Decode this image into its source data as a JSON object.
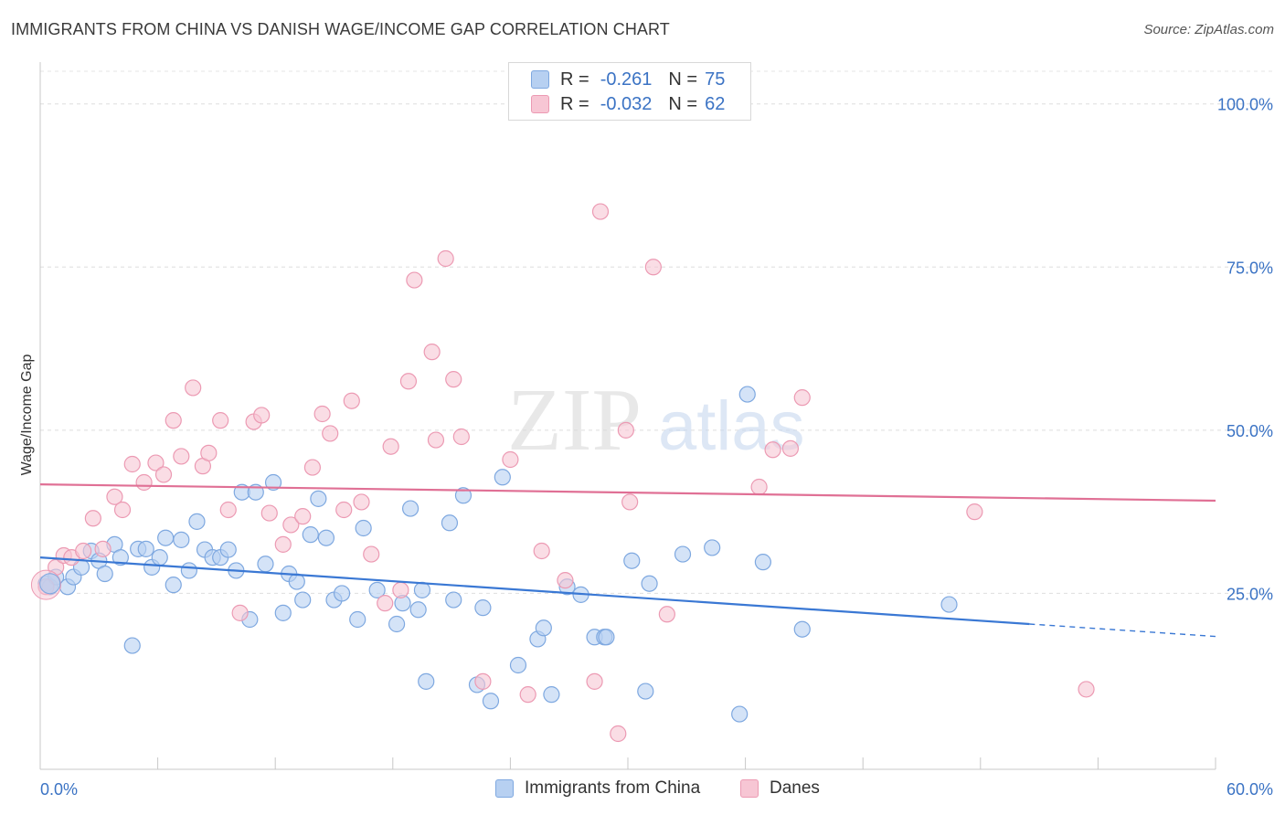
{
  "header": {
    "title": "IMMIGRANTS FROM CHINA VS DANISH WAGE/INCOME GAP CORRELATION CHART",
    "source": "Source: ZipAtlas.com"
  },
  "legend": {
    "rows": [
      {
        "r_label": "R =",
        "r_value": "-0.261",
        "n_label": "N =",
        "n_value": "75",
        "fill": "#b7d0f1",
        "stroke": "#7ea8e0"
      },
      {
        "r_label": "R =",
        "r_value": "-0.032",
        "n_label": "N =",
        "n_value": "62",
        "fill": "#f7c6d4",
        "stroke": "#ec9ab3"
      }
    ]
  },
  "bottom_legend": {
    "items": [
      {
        "label": "Immigrants from China",
        "fill": "#b7d0f1",
        "stroke": "#7ea8e0"
      },
      {
        "label": "Danes",
        "fill": "#f7c6d4",
        "stroke": "#ec9ab3"
      }
    ]
  },
  "watermark": {
    "zip": "ZIP",
    "atlas": "atlas"
  },
  "chart_data": {
    "type": "scatter",
    "title": "IMMIGRANTS FROM CHINA VS DANISH WAGE/INCOME GAP CORRELATION CHART",
    "xlabel": "",
    "ylabel": "Wage/Income Gap",
    "xlim": [
      0,
      60
    ],
    "ylim": [
      0,
      105
    ],
    "x_tick_labels": [
      "0.0%",
      "60.0%"
    ],
    "y_ticks": [
      25,
      50,
      75,
      100
    ],
    "y_tick_labels": [
      "25.0%",
      "50.0%",
      "75.0%",
      "100.0%"
    ],
    "grid": true,
    "legend_position": "top-center",
    "series": [
      {
        "name": "Immigrants from China",
        "color": "#3a78d4",
        "fill": "#b7d0f1",
        "points": [
          [
            0.3,
            26.5
          ],
          [
            0.5,
            26.0
          ],
          [
            0.8,
            27.5
          ],
          [
            1.4,
            26.0
          ],
          [
            1.7,
            27.5
          ],
          [
            2.1,
            29.0
          ],
          [
            2.6,
            31.5
          ],
          [
            3.0,
            30.0
          ],
          [
            3.3,
            28.0
          ],
          [
            3.8,
            32.5
          ],
          [
            4.1,
            30.5
          ],
          [
            4.7,
            17.0
          ],
          [
            5.0,
            31.8
          ],
          [
            5.4,
            31.8
          ],
          [
            5.7,
            29.0
          ],
          [
            6.1,
            30.5
          ],
          [
            6.4,
            33.5
          ],
          [
            6.8,
            26.3
          ],
          [
            7.2,
            33.2
          ],
          [
            7.6,
            28.5
          ],
          [
            8.0,
            36.0
          ],
          [
            8.4,
            31.7
          ],
          [
            8.8,
            30.5
          ],
          [
            9.2,
            30.5
          ],
          [
            9.6,
            31.7
          ],
          [
            10.0,
            28.5
          ],
          [
            10.3,
            40.5
          ],
          [
            10.7,
            21.0
          ],
          [
            11.0,
            40.5
          ],
          [
            11.5,
            29.5
          ],
          [
            11.9,
            42.0
          ],
          [
            12.4,
            22.0
          ],
          [
            12.7,
            28.0
          ],
          [
            13.1,
            26.8
          ],
          [
            13.4,
            24.0
          ],
          [
            13.8,
            34.0
          ],
          [
            14.2,
            39.5
          ],
          [
            14.6,
            33.5
          ],
          [
            15.0,
            24.0
          ],
          [
            15.4,
            25.0
          ],
          [
            16.2,
            21.0
          ],
          [
            16.5,
            35.0
          ],
          [
            17.2,
            25.5
          ],
          [
            18.2,
            20.3
          ],
          [
            18.5,
            23.5
          ],
          [
            18.9,
            38.0
          ],
          [
            19.3,
            22.5
          ],
          [
            19.5,
            25.5
          ],
          [
            19.7,
            11.5
          ],
          [
            20.9,
            35.8
          ],
          [
            21.1,
            24.0
          ],
          [
            21.6,
            40.0
          ],
          [
            22.3,
            11.0
          ],
          [
            22.6,
            22.8
          ],
          [
            23.0,
            8.5
          ],
          [
            23.6,
            42.8
          ],
          [
            24.4,
            14.0
          ],
          [
            25.4,
            18.0
          ],
          [
            25.7,
            19.7
          ],
          [
            26.1,
            9.5
          ],
          [
            26.9,
            26.0
          ],
          [
            27.6,
            24.8
          ],
          [
            28.3,
            18.3
          ],
          [
            28.8,
            18.3
          ],
          [
            28.9,
            18.3
          ],
          [
            30.2,
            30.0
          ],
          [
            30.9,
            10.0
          ],
          [
            31.1,
            26.5
          ],
          [
            32.8,
            31.0
          ],
          [
            34.3,
            32.0
          ],
          [
            35.7,
            6.5
          ],
          [
            36.1,
            55.5
          ],
          [
            36.9,
            29.8
          ],
          [
            38.9,
            19.5
          ],
          [
            46.4,
            23.3
          ]
        ],
        "trend": {
          "x1": 0,
          "y1": 30.5,
          "x2": 50.5,
          "y2": 20.3,
          "dash_x2": 60,
          "dash_y2": 18.4
        }
      },
      {
        "name": "Danes",
        "color": "#e07095",
        "fill": "#f7c6d4",
        "points": [
          [
            0.3,
            26.0
          ],
          [
            0.8,
            29.0
          ],
          [
            1.2,
            30.8
          ],
          [
            1.6,
            30.5
          ],
          [
            2.2,
            31.5
          ],
          [
            2.7,
            36.5
          ],
          [
            3.2,
            31.8
          ],
          [
            3.8,
            39.8
          ],
          [
            4.2,
            37.8
          ],
          [
            4.7,
            44.8
          ],
          [
            5.3,
            42.0
          ],
          [
            5.9,
            45.0
          ],
          [
            6.3,
            43.2
          ],
          [
            6.8,
            51.5
          ],
          [
            7.2,
            46.0
          ],
          [
            7.8,
            56.5
          ],
          [
            8.3,
            44.5
          ],
          [
            8.6,
            46.5
          ],
          [
            9.2,
            51.5
          ],
          [
            9.6,
            37.8
          ],
          [
            10.2,
            22.0
          ],
          [
            10.9,
            51.3
          ],
          [
            11.3,
            52.3
          ],
          [
            11.7,
            37.3
          ],
          [
            12.4,
            32.5
          ],
          [
            12.8,
            35.5
          ],
          [
            13.4,
            36.8
          ],
          [
            13.9,
            44.3
          ],
          [
            14.4,
            52.5
          ],
          [
            14.8,
            49.5
          ],
          [
            15.5,
            37.8
          ],
          [
            15.9,
            54.5
          ],
          [
            16.4,
            39.0
          ],
          [
            16.9,
            31.0
          ],
          [
            17.6,
            23.5
          ],
          [
            17.9,
            47.5
          ],
          [
            18.4,
            25.5
          ],
          [
            18.8,
            57.5
          ],
          [
            19.1,
            73.0
          ],
          [
            20.0,
            62.0
          ],
          [
            20.2,
            48.5
          ],
          [
            20.7,
            76.3
          ],
          [
            21.1,
            57.8
          ],
          [
            21.5,
            49.0
          ],
          [
            22.6,
            11.5
          ],
          [
            24.0,
            45.5
          ],
          [
            24.9,
            9.5
          ],
          [
            25.6,
            31.5
          ],
          [
            26.8,
            27.0
          ],
          [
            28.3,
            11.5
          ],
          [
            28.6,
            83.5
          ],
          [
            29.5,
            3.5
          ],
          [
            29.9,
            50.0
          ],
          [
            30.1,
            39.0
          ],
          [
            31.3,
            75.0
          ],
          [
            32.0,
            21.8
          ],
          [
            36.7,
            41.3
          ],
          [
            37.4,
            47.0
          ],
          [
            38.3,
            47.2
          ],
          [
            38.9,
            55.0
          ],
          [
            47.7,
            37.5
          ],
          [
            53.4,
            10.3
          ]
        ],
        "trend": {
          "x1": 0,
          "y1": 41.7,
          "x2": 60,
          "y2": 39.2
        }
      }
    ]
  }
}
